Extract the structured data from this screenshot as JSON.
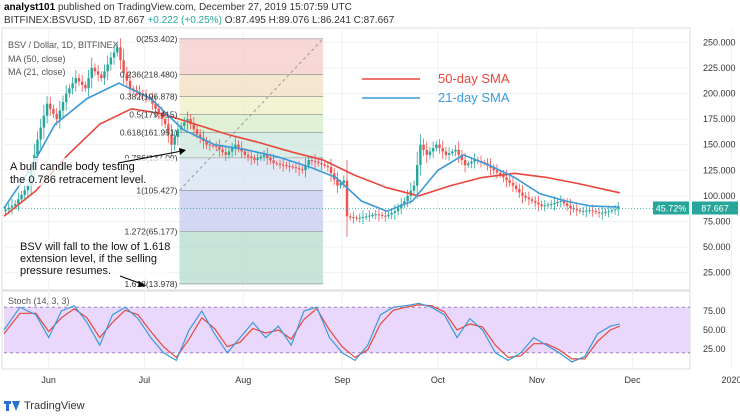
{
  "header": {
    "author": "analyst101",
    "published_text": "published on TradingView.com, December 27, 2019 15:07:59 UTC",
    "symbol_line": "BITFINEX:BSVUSD, 1D",
    "last": "87.667",
    "change": "+0.222 (+0.25%)",
    "ohlc": "O:87.495 H:89.076 L:86.241 C:87.667"
  },
  "footer": {
    "brand": "TradingView"
  },
  "colors": {
    "up": "#26a69a",
    "down": "#ef5350",
    "sma50": "#e8473b",
    "sma21": "#3a9ad9",
    "stoch_k": "#3a9ad9",
    "stoch_d": "#e8473b"
  },
  "chart_data": [
    {
      "type": "candlestick",
      "title": "BSV / Dollar, 1D, BITFINEX",
      "legend": [
        "MA (50, close)",
        "MA (21, close)"
      ],
      "x_ticks": [
        "Jun",
        "Jul",
        "Aug",
        "Sep",
        "Oct",
        "Nov",
        "Dec",
        "2020"
      ],
      "y_ticks": [
        "250.000",
        "225.000",
        "200.000",
        "175.000",
        "150.000",
        "125.000",
        "100.000",
        "75.000",
        "50.000",
        "25.000"
      ],
      "ylim": [
        10,
        262
      ],
      "last_price_label": "87.667",
      "last_price_pct": "45.72%",
      "price_path": [
        [
          0,
          85
        ],
        [
          4,
          92
        ],
        [
          8,
          110
        ],
        [
          11,
          155
        ],
        [
          14,
          190
        ],
        [
          17,
          175
        ],
        [
          20,
          200
        ],
        [
          23,
          215
        ],
        [
          26,
          205
        ],
        [
          28,
          225
        ],
        [
          31,
          215
        ],
        [
          34,
          235
        ],
        [
          36,
          245
        ],
        [
          38,
          220
        ],
        [
          40,
          205
        ],
        [
          43,
          200
        ],
        [
          46,
          195
        ],
        [
          48,
          185
        ],
        [
          51,
          170
        ],
        [
          53,
          150
        ],
        [
          55,
          165
        ],
        [
          58,
          175
        ],
        [
          61,
          160
        ],
        [
          64,
          150
        ],
        [
          67,
          148
        ],
        [
          70,
          140
        ],
        [
          73,
          150
        ],
        [
          76,
          140
        ],
        [
          79,
          135
        ],
        [
          82,
          140
        ],
        [
          85,
          132
        ],
        [
          88,
          130
        ],
        [
          91,
          128
        ],
        [
          94,
          125
        ],
        [
          96,
          135
        ],
        [
          99,
          132
        ],
        [
          102,
          128
        ],
        [
          105,
          110
        ],
        [
          107,
          115
        ],
        [
          108,
          80
        ],
        [
          111,
          78
        ],
        [
          114,
          80
        ],
        [
          117,
          82
        ],
        [
          120,
          80
        ],
        [
          123,
          85
        ],
        [
          126,
          95
        ],
        [
          129,
          110
        ],
        [
          131,
          150
        ],
        [
          133,
          140
        ],
        [
          136,
          150
        ],
        [
          139,
          140
        ],
        [
          142,
          145
        ],
        [
          145,
          130
        ],
        [
          148,
          135
        ],
        [
          151,
          132
        ],
        [
          154,
          125
        ],
        [
          157,
          118
        ],
        [
          160,
          110
        ],
        [
          163,
          100
        ],
        [
          166,
          95
        ],
        [
          169,
          90
        ],
        [
          172,
          92
        ],
        [
          175,
          95
        ],
        [
          178,
          88
        ],
        [
          181,
          85
        ],
        [
          184,
          86
        ],
        [
          187,
          83
        ],
        [
          190,
          85
        ],
        [
          193,
          87.7
        ]
      ],
      "sma50": [
        [
          0,
          80
        ],
        [
          10,
          105
        ],
        [
          20,
          140
        ],
        [
          30,
          170
        ],
        [
          40,
          185
        ],
        [
          50,
          180
        ],
        [
          60,
          170
        ],
        [
          70,
          160
        ],
        [
          80,
          152
        ],
        [
          90,
          143
        ],
        [
          100,
          135
        ],
        [
          110,
          120
        ],
        [
          120,
          108
        ],
        [
          130,
          100
        ],
        [
          140,
          110
        ],
        [
          150,
          118
        ],
        [
          160,
          122
        ],
        [
          170,
          118
        ],
        [
          180,
          112
        ],
        [
          193,
          103
        ]
      ],
      "sma21": [
        [
          0,
          88
        ],
        [
          8,
          125
        ],
        [
          16,
          170
        ],
        [
          26,
          195
        ],
        [
          36,
          210
        ],
        [
          46,
          195
        ],
        [
          56,
          165
        ],
        [
          66,
          150
        ],
        [
          76,
          145
        ],
        [
          86,
          138
        ],
        [
          96,
          128
        ],
        [
          104,
          118
        ],
        [
          112,
          95
        ],
        [
          120,
          85
        ],
        [
          128,
          95
        ],
        [
          136,
          125
        ],
        [
          144,
          140
        ],
        [
          152,
          130
        ],
        [
          160,
          118
        ],
        [
          168,
          102
        ],
        [
          176,
          95
        ],
        [
          184,
          90
        ],
        [
          193,
          89
        ]
      ],
      "fib_levels": [
        {
          "label": "0(253.402)",
          "value": 253.4
        },
        {
          "label": "0.236(218.480)",
          "value": 218.48
        },
        {
          "label": "0.382(196.878)",
          "value": 196.88
        },
        {
          "label": "0.5(179.415)",
          "value": 179.4
        },
        {
          "label": "0.618(161.951)",
          "value": 161.95
        },
        {
          "label": "0.786(137.09)",
          "value": 137.09
        },
        {
          "label": "1(105.427)",
          "value": 105.4
        },
        {
          "label": "1.272(65.177)",
          "value": 65.18
        },
        {
          "label": "1.618(13.978)",
          "value": 13.98
        }
      ],
      "annotations": {
        "sma50_label": "50-day SMA",
        "sma21_label": "21-day SMA",
        "note1": "A bull candle body testing the 0.786 retracement level.",
        "note2": "BSV will fall to the low of 1.618 extension level, if the selling pressure resumes."
      }
    },
    {
      "type": "line",
      "title": "Stoch (14, 3, 3)",
      "y_ticks": [
        "75.00",
        "50.00",
        "25.00"
      ],
      "ylim": [
        0,
        100
      ],
      "bands": [
        20,
        80
      ],
      "k": [
        [
          0,
          50
        ],
        [
          5,
          80
        ],
        [
          10,
          70
        ],
        [
          14,
          40
        ],
        [
          18,
          75
        ],
        [
          22,
          82
        ],
        [
          26,
          60
        ],
        [
          30,
          30
        ],
        [
          34,
          70
        ],
        [
          38,
          80
        ],
        [
          42,
          65
        ],
        [
          46,
          40
        ],
        [
          50,
          20
        ],
        [
          54,
          10
        ],
        [
          58,
          50
        ],
        [
          62,
          75
        ],
        [
          66,
          45
        ],
        [
          70,
          20
        ],
        [
          74,
          40
        ],
        [
          78,
          60
        ],
        [
          82,
          40
        ],
        [
          86,
          55
        ],
        [
          90,
          30
        ],
        [
          94,
          75
        ],
        [
          98,
          80
        ],
        [
          102,
          40
        ],
        [
          106,
          20
        ],
        [
          110,
          10
        ],
        [
          114,
          30
        ],
        [
          118,
          70
        ],
        [
          122,
          80
        ],
        [
          126,
          82
        ],
        [
          130,
          85
        ],
        [
          134,
          80
        ],
        [
          138,
          70
        ],
        [
          142,
          40
        ],
        [
          146,
          65
        ],
        [
          150,
          50
        ],
        [
          154,
          20
        ],
        [
          158,
          10
        ],
        [
          162,
          20
        ],
        [
          166,
          40
        ],
        [
          170,
          30
        ],
        [
          174,
          20
        ],
        [
          178,
          8
        ],
        [
          182,
          15
        ],
        [
          186,
          45
        ],
        [
          190,
          55
        ],
        [
          193,
          58
        ]
      ],
      "d": [
        [
          0,
          45
        ],
        [
          5,
          72
        ],
        [
          10,
          72
        ],
        [
          14,
          48
        ],
        [
          18,
          66
        ],
        [
          22,
          78
        ],
        [
          26,
          66
        ],
        [
          30,
          40
        ],
        [
          34,
          60
        ],
        [
          38,
          76
        ],
        [
          42,
          70
        ],
        [
          46,
          48
        ],
        [
          50,
          28
        ],
        [
          54,
          14
        ],
        [
          58,
          38
        ],
        [
          62,
          66
        ],
        [
          66,
          52
        ],
        [
          70,
          28
        ],
        [
          74,
          34
        ],
        [
          78,
          52
        ],
        [
          82,
          46
        ],
        [
          86,
          50
        ],
        [
          90,
          38
        ],
        [
          94,
          64
        ],
        [
          98,
          78
        ],
        [
          102,
          50
        ],
        [
          106,
          28
        ],
        [
          110,
          14
        ],
        [
          114,
          24
        ],
        [
          118,
          58
        ],
        [
          122,
          76
        ],
        [
          126,
          80
        ],
        [
          130,
          83
        ],
        [
          134,
          82
        ],
        [
          138,
          74
        ],
        [
          142,
          50
        ],
        [
          146,
          58
        ],
        [
          150,
          54
        ],
        [
          154,
          30
        ],
        [
          158,
          14
        ],
        [
          162,
          16
        ],
        [
          166,
          32
        ],
        [
          170,
          32
        ],
        [
          174,
          24
        ],
        [
          178,
          12
        ],
        [
          182,
          12
        ],
        [
          186,
          35
        ],
        [
          190,
          50
        ],
        [
          193,
          55
        ]
      ]
    }
  ]
}
